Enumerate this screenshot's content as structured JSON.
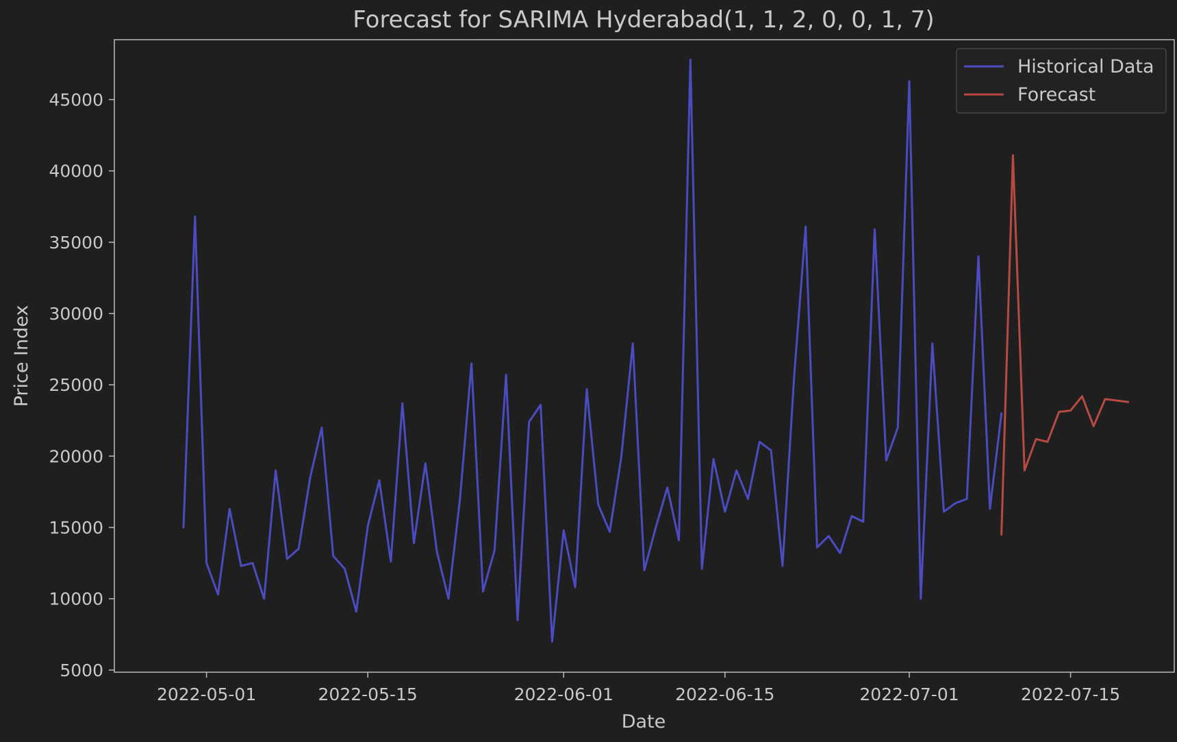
{
  "chart_data": {
    "type": "line",
    "title": "Forecast for SARIMA Hyderabad(1, 1, 2, 0, 0, 1, 7)",
    "xlabel": "Date",
    "ylabel": "Price Index",
    "xlim": [
      "2022-04-23",
      "2022-07-24"
    ],
    "ylim": [
      4850,
      49200
    ],
    "x_ticks": [
      "2022-05-01",
      "2022-05-15",
      "2022-06-01",
      "2022-06-15",
      "2022-07-01",
      "2022-07-15"
    ],
    "y_ticks": [
      5000,
      10000,
      15000,
      20000,
      25000,
      30000,
      35000,
      40000,
      45000
    ],
    "grid": false,
    "legend": "top-right",
    "series": [
      {
        "name": "Historical Data",
        "color": "#4c4cc2",
        "x": [
          "2022-04-29",
          "2022-04-30",
          "2022-05-01",
          "2022-05-02",
          "2022-05-03",
          "2022-05-04",
          "2022-05-05",
          "2022-05-06",
          "2022-05-07",
          "2022-05-08",
          "2022-05-09",
          "2022-05-10",
          "2022-05-11",
          "2022-05-12",
          "2022-05-13",
          "2022-05-14",
          "2022-05-15",
          "2022-05-16",
          "2022-05-17",
          "2022-05-18",
          "2022-05-19",
          "2022-05-20",
          "2022-05-21",
          "2022-05-22",
          "2022-05-23",
          "2022-05-24",
          "2022-05-25",
          "2022-05-26",
          "2022-05-27",
          "2022-05-28",
          "2022-05-29",
          "2022-05-30",
          "2022-05-31",
          "2022-06-01",
          "2022-06-02",
          "2022-06-03",
          "2022-06-04",
          "2022-06-05",
          "2022-06-06",
          "2022-06-07",
          "2022-06-08",
          "2022-06-09",
          "2022-06-10",
          "2022-06-11",
          "2022-06-12",
          "2022-06-13",
          "2022-06-14",
          "2022-06-15",
          "2022-06-16",
          "2022-06-17",
          "2022-06-18",
          "2022-06-19",
          "2022-06-20",
          "2022-06-21",
          "2022-06-22",
          "2022-06-23",
          "2022-06-24",
          "2022-06-25",
          "2022-06-26",
          "2022-06-27",
          "2022-06-28",
          "2022-06-29",
          "2022-06-30",
          "2022-07-01",
          "2022-07-02",
          "2022-07-03",
          "2022-07-04",
          "2022-07-05",
          "2022-07-06",
          "2022-07-07",
          "2022-07-08",
          "2022-07-09"
        ],
        "values": [
          15000,
          36800,
          12500,
          10300,
          16300,
          12300,
          12500,
          10000,
          19000,
          12800,
          13500,
          18500,
          22000,
          13000,
          12100,
          9100,
          15100,
          18300,
          12600,
          23700,
          13900,
          19500,
          13300,
          10000,
          17000,
          26500,
          10500,
          13400,
          25700,
          8500,
          22400,
          23600,
          7000,
          14800,
          10800,
          24700,
          16600,
          14700,
          19900,
          27900,
          12000,
          15000,
          17800,
          14100,
          47800,
          12100,
          19800,
          16100,
          19000,
          17000,
          21000,
          20400,
          12300,
          25500,
          36100,
          13600,
          14400,
          13200,
          15800,
          15400,
          35900,
          19700,
          22000,
          46300,
          10000,
          27900,
          16100,
          16700,
          17000,
          34000,
          16300,
          23000
        ]
      },
      {
        "name": "Forecast",
        "color": "#b84a44",
        "x": [
          "2022-07-09",
          "2022-07-10",
          "2022-07-11",
          "2022-07-12",
          "2022-07-13",
          "2022-07-14",
          "2022-07-15",
          "2022-07-16",
          "2022-07-17",
          "2022-07-18",
          "2022-07-19",
          "2022-07-20"
        ],
        "values": [
          14500,
          41100,
          19000,
          21200,
          21000,
          23100,
          23200,
          24200,
          22100,
          24000,
          23900,
          23800
        ]
      }
    ]
  }
}
